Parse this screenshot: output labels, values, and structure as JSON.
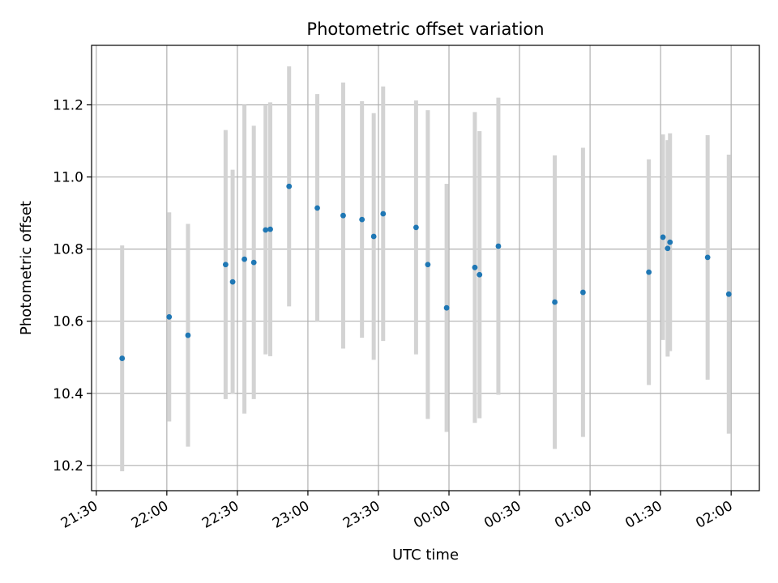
{
  "chart_data": {
    "type": "scatter",
    "title": "Photometric offset variation",
    "xlabel": "UTC time",
    "ylabel": "Photometric offset",
    "grid": true,
    "xlim": [
      "21:28",
      "02:12"
    ],
    "ylim": [
      10.13,
      11.365
    ],
    "x_ticks": [
      "21:30",
      "22:00",
      "22:30",
      "23:00",
      "23:30",
      "00:00",
      "00:30",
      "01:00",
      "01:30",
      "02:00"
    ],
    "y_ticks": [
      "10.2",
      "10.4",
      "10.6",
      "10.8",
      "11.0",
      "11.2"
    ],
    "point_color": "#1f77b4",
    "errorbar_color": "#d3d3d3",
    "series": [
      {
        "points": [
          {
            "x": "21:41",
            "y": 10.497,
            "err": 0.313
          },
          {
            "x": "22:01",
            "y": 10.612,
            "err": 0.29
          },
          {
            "x": "22:09",
            "y": 10.561,
            "err": 0.309
          },
          {
            "x": "22:25",
            "y": 10.757,
            "err": 0.373
          },
          {
            "x": "22:28",
            "y": 10.709,
            "err": 0.311
          },
          {
            "x": "22:33",
            "y": 10.772,
            "err": 0.428
          },
          {
            "x": "22:37",
            "y": 10.763,
            "err": 0.379
          },
          {
            "x": "22:42",
            "y": 10.853,
            "err": 0.345
          },
          {
            "x": "22:44",
            "y": 10.855,
            "err": 0.352
          },
          {
            "x": "22:52",
            "y": 10.974,
            "err": 0.333
          },
          {
            "x": "23:04",
            "y": 10.914,
            "err": 0.316
          },
          {
            "x": "23:15",
            "y": 10.893,
            "err": 0.369
          },
          {
            "x": "23:23",
            "y": 10.882,
            "err": 0.328
          },
          {
            "x": "23:28",
            "y": 10.835,
            "err": 0.342
          },
          {
            "x": "23:32",
            "y": 10.898,
            "err": 0.353
          },
          {
            "x": "23:46",
            "y": 10.86,
            "err": 0.352
          },
          {
            "x": "23:51",
            "y": 10.757,
            "err": 0.428
          },
          {
            "x": "23:59",
            "y": 10.637,
            "err": 0.344
          },
          {
            "x": "00:11",
            "y": 10.749,
            "err": 0.431
          },
          {
            "x": "00:13",
            "y": 10.729,
            "err": 0.398
          },
          {
            "x": "00:21",
            "y": 10.808,
            "err": 0.412
          },
          {
            "x": "00:45",
            "y": 10.653,
            "err": 0.407
          },
          {
            "x": "00:57",
            "y": 10.68,
            "err": 0.401
          },
          {
            "x": "01:25",
            "y": 10.736,
            "err": 0.313
          },
          {
            "x": "01:31",
            "y": 10.833,
            "err": 0.285
          },
          {
            "x": "01:33",
            "y": 10.802,
            "err": 0.3
          },
          {
            "x": "01:34",
            "y": 10.819,
            "err": 0.302
          },
          {
            "x": "01:50",
            "y": 10.777,
            "err": 0.339
          },
          {
            "x": "01:59",
            "y": 10.675,
            "err": 0.387
          }
        ]
      }
    ]
  }
}
